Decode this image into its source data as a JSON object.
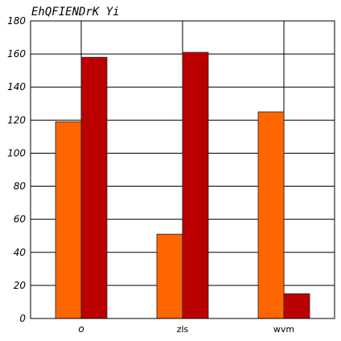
{
  "chart_data": {
    "type": "bar",
    "title": "EhQFIENDrK  Yi",
    "xlabel": "",
    "ylabel": "",
    "categories": [
      "o",
      "zls",
      "wvm"
    ],
    "series": [
      {
        "values": [
          119,
          51,
          125
        ],
        "color": "#ff6600"
      },
      {
        "values": [
          158,
          161,
          15
        ],
        "color": "#bb0000"
      }
    ],
    "ylim": [
      0,
      180
    ],
    "yticks": [
      0,
      20,
      40,
      60,
      80,
      100,
      120,
      140,
      160,
      180
    ],
    "grid": true,
    "legend": "none"
  }
}
